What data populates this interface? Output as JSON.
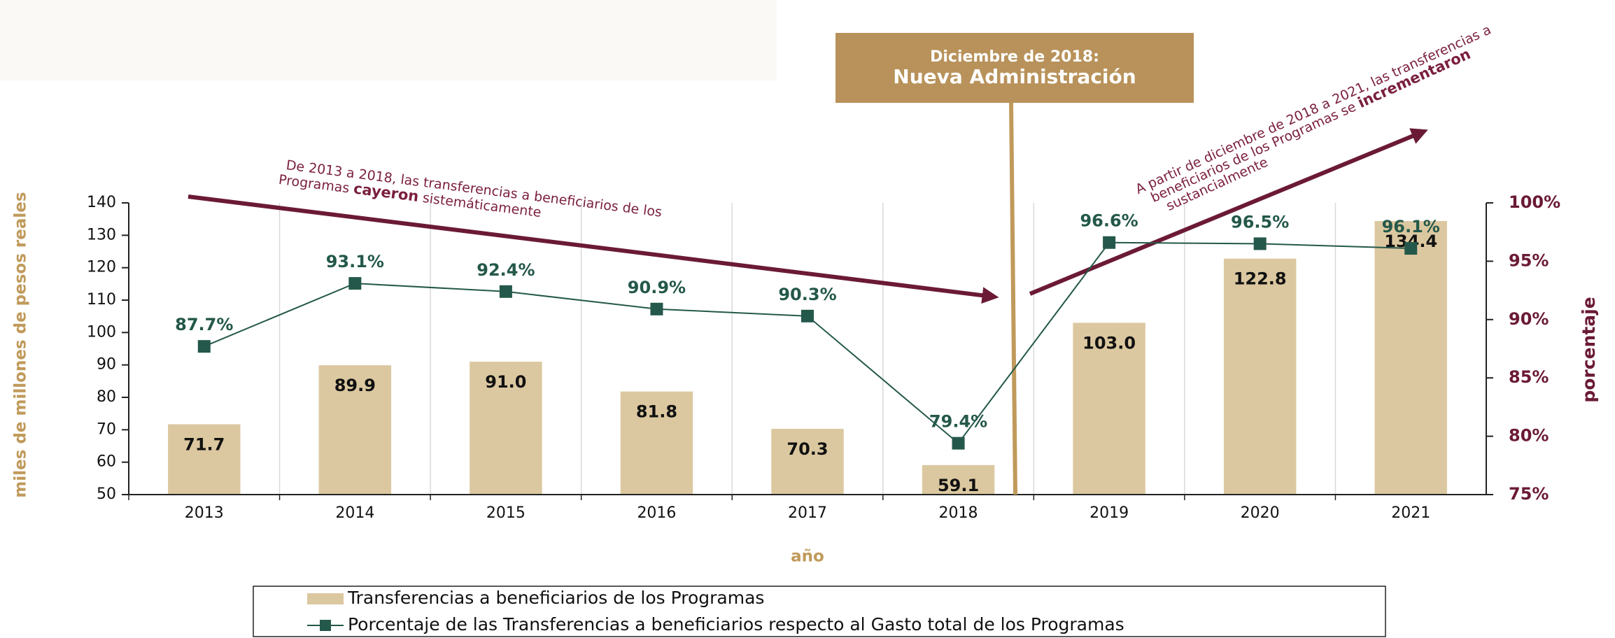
{
  "chart_data": {
    "type": "bar",
    "header": [
      "Diciembre de 2018:",
      "Nueva Administración"
    ],
    "x_label": "año",
    "y_label": "miles de millones de pesos reales",
    "y2_label": "porcentaje",
    "categories": [
      "2013",
      "2014",
      "2015",
      "2016",
      "2017",
      "2018",
      "2019",
      "2020",
      "2021"
    ],
    "series": [
      {
        "name": "Transferencias a beneficiarios de los Programas",
        "type": "bar",
        "color": "#dcc8a0",
        "values": [
          71.7,
          89.9,
          91.0,
          81.8,
          70.3,
          59.1,
          103.0,
          122.8,
          134.4
        ],
        "value_labels": [
          "71.7",
          "89.9",
          "91.0",
          "81.8",
          "70.3",
          "59.1",
          "103.0",
          "122.8",
          "134.4"
        ]
      },
      {
        "name": "Porcentaje de las Transferencias a beneficiarios respecto al Gasto total de los Programas",
        "type": "line",
        "axis": "y2",
        "color": "#24584a",
        "values": [
          87.7,
          93.1,
          92.4,
          90.9,
          90.3,
          79.4,
          96.6,
          96.5,
          96.1
        ],
        "value_labels": [
          "87.7%",
          "93.1%",
          "92.4%",
          "90.9%",
          "90.3%",
          "79.4%",
          "96.6%",
          "96.5%",
          "96.1%"
        ]
      }
    ],
    "ylim": [
      50,
      140
    ],
    "yticks": [
      50,
      60,
      70,
      80,
      90,
      100,
      110,
      120,
      130,
      140
    ],
    "y2lim": [
      75,
      100
    ],
    "y2ticks": [
      {
        "value": 75,
        "label": "75%"
      },
      {
        "value": 80,
        "label": "80%"
      },
      {
        "value": 85,
        "label": "85%"
      },
      {
        "value": 90,
        "label": "90%"
      },
      {
        "value": 95,
        "label": "95%"
      },
      {
        "value": 100,
        "label": "100%"
      }
    ],
    "annotations": [
      {
        "lines": [
          [
            {
              "text": "De 2013 a 2018, las transferencias a beneficiarios de los",
              "bold": false
            }
          ],
          [
            {
              "text": "Programas ",
              "bold": false
            },
            {
              "text": "cayeron",
              "bold": true
            },
            {
              "text": " sistemáticamente",
              "bold": false
            }
          ]
        ]
      },
      {
        "lines": [
          [
            {
              "text": "A partir de diciembre de 2018 a 2021, las transferencias a",
              "bold": false
            }
          ],
          [
            {
              "text": "beneficiarios de los Programas se ",
              "bold": false
            },
            {
              "text": "incrementaron",
              "bold": true
            }
          ],
          [
            {
              "text": "sustancialmente",
              "bold": false
            }
          ]
        ]
      }
    ],
    "legend": "bottom",
    "grid": true
  }
}
